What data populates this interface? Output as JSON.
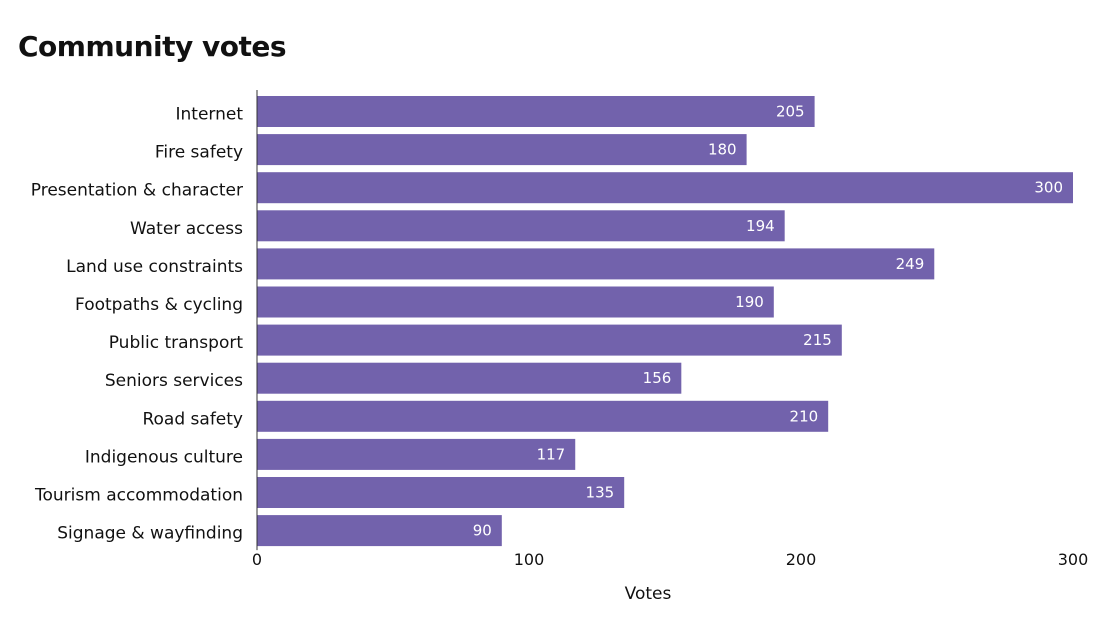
{
  "chart_data": {
    "type": "bar",
    "orientation": "horizontal",
    "title": "Community votes",
    "xlabel": "Votes",
    "ylabel": "",
    "xlim": [
      0,
      300
    ],
    "xticks": [
      0,
      100,
      200,
      300
    ],
    "categories": [
      "Internet",
      "Fire safety",
      "Presentation & character",
      "Water access",
      "Land use constraints",
      "Footpaths & cycling",
      "Public transport",
      "Seniors services",
      "Road safety",
      "Indigenous culture",
      "Tourism accommodation",
      "Signage & wayfinding"
    ],
    "values": [
      205,
      180,
      300,
      194,
      249,
      190,
      215,
      156,
      210,
      117,
      135,
      90
    ],
    "bar_color": "#7262AC",
    "grid": false,
    "legend": "none"
  }
}
